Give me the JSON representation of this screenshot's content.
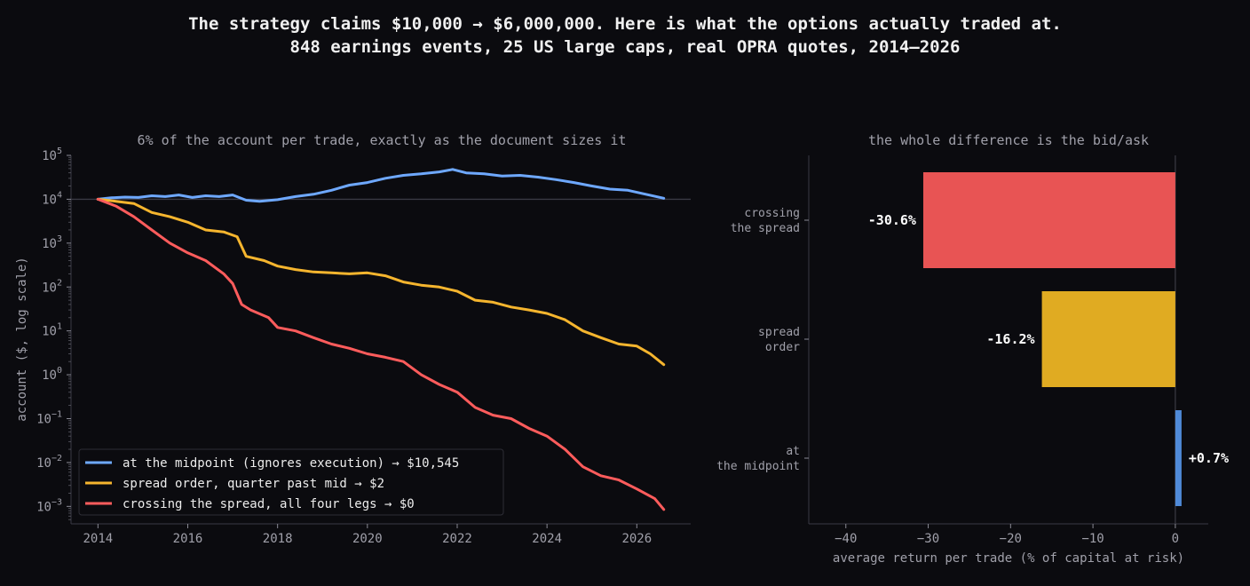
{
  "figure": {
    "title_line1": "The strategy claims $10,000 → $6,000,000. Here is what the options actually traded at.",
    "title_line2": "848 earnings events, 25 US large caps, real OPRA quotes, 2014–2026"
  },
  "chart_data": [
    {
      "type": "line",
      "title": "6% of the account per trade, exactly as the document sizes it",
      "xlabel": "",
      "ylabel": "account ($, log scale)",
      "y_scale": "log",
      "xlim": [
        2013.4,
        2027.2
      ],
      "ylim": [
        0.0004,
        100000
      ],
      "x_ticks": [
        2014,
        2016,
        2018,
        2020,
        2022,
        2024,
        2026
      ],
      "x_tick_labels": [
        "2014",
        "2016",
        "2018",
        "2020",
        "2022",
        "2024",
        "2026"
      ],
      "y_ticks": [
        {
          "value": 100000,
          "base": "10",
          "exp": "5"
        },
        {
          "value": 10000,
          "base": "10",
          "exp": "4"
        },
        {
          "value": 1000,
          "base": "10",
          "exp": "3"
        },
        {
          "value": 100,
          "base": "10",
          "exp": "2"
        },
        {
          "value": 10,
          "base": "10",
          "exp": "1"
        },
        {
          "value": 1,
          "base": "10",
          "exp": "0"
        },
        {
          "value": 0.1,
          "base": "10",
          "exp": "−1"
        },
        {
          "value": 0.01,
          "base": "10",
          "exp": "−2"
        },
        {
          "value": 0.001,
          "base": "10",
          "exp": "−3"
        }
      ],
      "reference_line": 10000,
      "grid": false,
      "legend_position": "bottom-left",
      "series": [
        {
          "name": "at the midpoint (ignores execution)  →  $10,545",
          "color": "#6ea8fe",
          "x": [
            2014.0,
            2014.3,
            2014.6,
            2014.9,
            2015.2,
            2015.5,
            2015.8,
            2016.1,
            2016.4,
            2016.7,
            2017.0,
            2017.3,
            2017.6,
            2018.0,
            2018.4,
            2018.8,
            2019.2,
            2019.6,
            2020.0,
            2020.4,
            2020.8,
            2021.2,
            2021.6,
            2021.9,
            2022.2,
            2022.6,
            2023.0,
            2023.4,
            2023.8,
            2024.2,
            2024.6,
            2025.0,
            2025.4,
            2025.8,
            2026.2,
            2026.6
          ],
          "y": [
            10000,
            10800,
            11200,
            11000,
            12000,
            11500,
            12500,
            11000,
            12000,
            11500,
            12500,
            9500,
            9000,
            9800,
            11500,
            13000,
            16000,
            21000,
            24000,
            30000,
            35000,
            38000,
            42000,
            48000,
            40000,
            38000,
            34000,
            35000,
            32000,
            28000,
            24000,
            20000,
            17000,
            16000,
            13000,
            10545
          ]
        },
        {
          "name": "spread order, quarter past mid  →  $2",
          "color": "#f5b52e",
          "x": [
            2014.0,
            2014.4,
            2014.8,
            2015.2,
            2015.6,
            2016.0,
            2016.4,
            2016.8,
            2017.1,
            2017.3,
            2017.7,
            2018.0,
            2018.4,
            2018.8,
            2019.2,
            2019.6,
            2020.0,
            2020.4,
            2020.8,
            2021.2,
            2021.6,
            2022.0,
            2022.4,
            2022.8,
            2023.2,
            2023.6,
            2024.0,
            2024.4,
            2024.8,
            2025.2,
            2025.6,
            2026.0,
            2026.3,
            2026.6
          ],
          "y": [
            10000,
            9000,
            8000,
            5000,
            4000,
            3000,
            2000,
            1800,
            1400,
            500,
            400,
            300,
            250,
            220,
            210,
            200,
            210,
            180,
            130,
            110,
            100,
            80,
            50,
            45,
            35,
            30,
            25,
            18,
            10,
            7,
            5,
            4.5,
            3,
            1.7
          ]
        },
        {
          "name": "crossing the spread, all four legs  →  $0",
          "color": "#ff5c5c",
          "x": [
            2014.0,
            2014.4,
            2014.8,
            2015.2,
            2015.6,
            2016.0,
            2016.4,
            2016.8,
            2017.0,
            2017.2,
            2017.4,
            2017.8,
            2018.0,
            2018.4,
            2018.8,
            2019.2,
            2019.6,
            2020.0,
            2020.4,
            2020.8,
            2021.2,
            2021.6,
            2022.0,
            2022.4,
            2022.8,
            2023.2,
            2023.6,
            2024.0,
            2024.4,
            2024.8,
            2025.2,
            2025.6,
            2026.0,
            2026.4,
            2026.6
          ],
          "y": [
            10000,
            7000,
            4000,
            2000,
            1000,
            600,
            400,
            200,
            120,
            40,
            30,
            20,
            12,
            10,
            7,
            5,
            4,
            3,
            2.5,
            2,
            1,
            0.6,
            0.4,
            0.18,
            0.12,
            0.1,
            0.06,
            0.04,
            0.02,
            0.008,
            0.005,
            0.004,
            0.0025,
            0.0015,
            0.00085
          ]
        }
      ]
    },
    {
      "type": "bar",
      "orientation": "horizontal",
      "title": "the whole difference is the bid/ask",
      "xlabel": "average return per trade (% of capital at risk)",
      "ylabel": "",
      "xlim": [
        -44.5,
        4
      ],
      "x_ticks": [
        -40,
        -30,
        -20,
        -10,
        0
      ],
      "x_tick_labels": [
        "−40",
        "−30",
        "−20",
        "−10",
        "0"
      ],
      "categories": [
        {
          "line1": "crossing",
          "line2": "the spread"
        },
        {
          "line1": "spread",
          "line2": "order"
        },
        {
          "line1": "at",
          "line2": "the midpoint"
        }
      ],
      "values": [
        -30.6,
        -16.2,
        0.7
      ],
      "value_labels": [
        "-30.6%",
        "-16.2%",
        "+0.7%"
      ],
      "colors": [
        "#e85454",
        "#e0ab22",
        "#4f8ad8"
      ]
    }
  ]
}
